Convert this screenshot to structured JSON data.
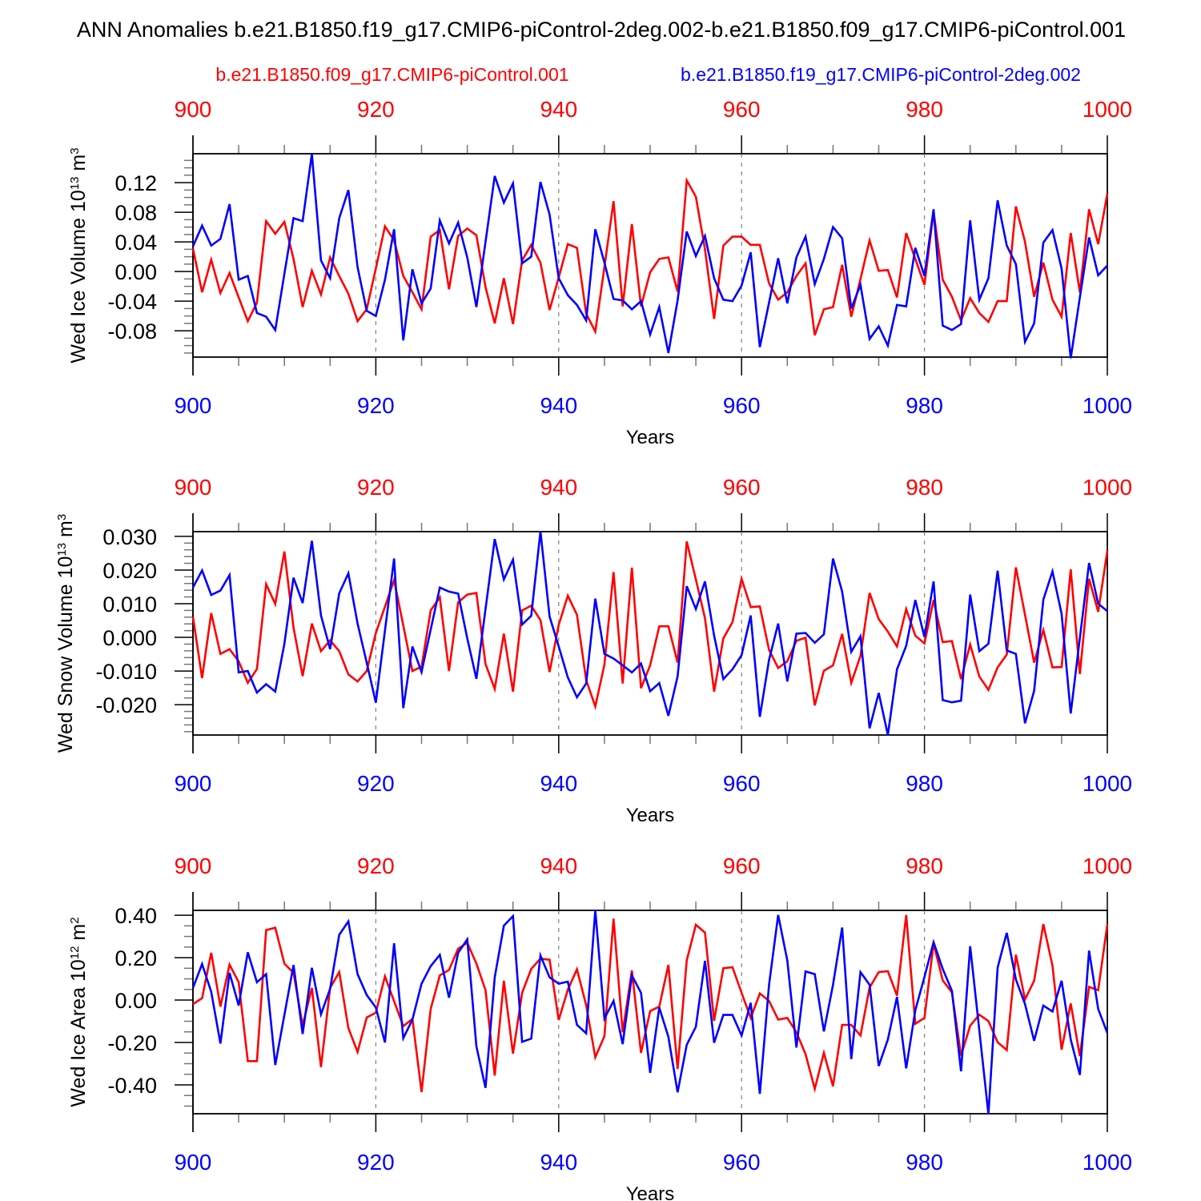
{
  "title": "ANN Anomalies b.e21.B1850.f19_g17.CMIP6-piControl-2deg.002-b.e21.B1850.f09_g17.CMIP6-piControl.001",
  "legend": {
    "red_label": "b.e21.B1850.f09_g17.CMIP6-piControl.001",
    "blue_label": "b.e21.B1850.f19_g17.CMIP6-piControl-2deg.002"
  },
  "colors": {
    "red": "#ff0000",
    "blue": "#0000ff",
    "grid": "#808080"
  },
  "chart_data": [
    {
      "type": "line",
      "ylabel": {
        "base": "Wed Ice Volume 10",
        "exp": "13",
        "unit": " m",
        "unit_exp": "3"
      },
      "xlabel": "Years",
      "x_start": 900,
      "x_end": 1000,
      "xticks": [
        "900",
        "920",
        "940",
        "960",
        "980",
        "1000"
      ],
      "xtick_values": [
        900,
        920,
        940,
        960,
        980,
        1000
      ],
      "ylim": [
        -0.1155,
        0.159
      ],
      "yticks": [
        "0.12",
        "0.08",
        "0.04",
        "0.00",
        "-0.04",
        "-0.08"
      ],
      "ytick_values": [
        0.12,
        0.08,
        0.04,
        0.0,
        -0.04,
        -0.08
      ],
      "yminor_step": 0.01,
      "grid": "dashed vertical at 920, 940, 960, 980",
      "series": [
        {
          "name": "b.e21.B1850.f09_g17.CMIP6-piControl.001",
          "color": "red",
          "values": [
            0.031,
            -0.028,
            0.016,
            -0.029,
            -0.002,
            -0.035,
            -0.067,
            -0.042,
            0.068,
            0.051,
            0.067,
            0.017,
            -0.048,
            0.001,
            -0.031,
            0.019,
            -0.006,
            -0.03,
            -0.067,
            -0.051,
            0.004,
            0.061,
            0.042,
            -0.006,
            -0.028,
            -0.051,
            0.047,
            0.056,
            -0.024,
            0.048,
            0.058,
            0.049,
            -0.021,
            -0.07,
            -0.009,
            -0.071,
            0.015,
            0.036,
            0.012,
            -0.052,
            -0.008,
            0.037,
            0.032,
            -0.057,
            -0.081,
            0.006,
            0.095,
            -0.047,
            0.064,
            -0.047,
            -0.001,
            0.017,
            0.019,
            -0.027,
            0.123,
            0.101,
            0.03,
            -0.064,
            0.035,
            0.047,
            0.047,
            0.036,
            0.036,
            -0.016,
            -0.038,
            -0.028,
            -0.006,
            0.011,
            -0.086,
            -0.051,
            -0.048,
            0.009,
            -0.061,
            -0.01,
            0.042,
            0.001,
            0.002,
            -0.035,
            0.052,
            0.017,
            -0.018,
            0.081,
            -0.011,
            -0.034,
            -0.066,
            -0.036,
            -0.056,
            -0.068,
            -0.04,
            -0.04,
            0.088,
            0.04,
            -0.034,
            0.012,
            -0.038,
            -0.061,
            0.052,
            -0.028,
            0.084,
            0.037,
            0.105
          ]
        },
        {
          "name": "b.e21.B1850.f19_g17.CMIP6-piControl-2deg.002",
          "color": "blue",
          "values": [
            0.034,
            0.062,
            0.035,
            0.044,
            0.091,
            -0.011,
            -0.006,
            -0.056,
            -0.061,
            -0.079,
            -0.003,
            0.072,
            0.068,
            0.159,
            0.015,
            -0.009,
            0.072,
            0.11,
            0.006,
            -0.053,
            -0.06,
            -0.011,
            0.057,
            -0.093,
            0.003,
            -0.043,
            -0.023,
            0.069,
            0.038,
            0.066,
            0.019,
            -0.048,
            0.04,
            0.129,
            0.093,
            0.119,
            0.011,
            0.02,
            0.121,
            0.077,
            -0.009,
            -0.032,
            -0.045,
            -0.066,
            0.057,
            0.012,
            -0.037,
            -0.039,
            -0.051,
            -0.04,
            -0.085,
            -0.048,
            -0.11,
            -0.039,
            0.054,
            0.021,
            0.048,
            -0.009,
            -0.038,
            -0.04,
            -0.019,
            0.026,
            -0.102,
            -0.042,
            0.018,
            -0.043,
            0.019,
            0.047,
            -0.017,
            0.017,
            0.06,
            0.045,
            -0.05,
            -0.018,
            -0.091,
            -0.074,
            -0.1,
            -0.045,
            -0.047,
            0.032,
            -0.006,
            0.084,
            -0.073,
            -0.079,
            -0.071,
            0.069,
            -0.038,
            -0.009,
            0.096,
            0.035,
            0.01,
            -0.095,
            -0.07,
            0.039,
            0.056,
            0.004,
            -0.117,
            -0.035,
            0.046,
            -0.005,
            0.008
          ]
        }
      ]
    },
    {
      "type": "line",
      "ylabel": {
        "base": "Wed Snow Volume 10",
        "exp": "13",
        "unit": " m",
        "unit_exp": "3"
      },
      "xlabel": "Years",
      "x_start": 900,
      "x_end": 1000,
      "xticks": [
        "900",
        "920",
        "940",
        "960",
        "980",
        "1000"
      ],
      "xtick_values": [
        900,
        920,
        940,
        960,
        980,
        1000
      ],
      "ylim": [
        -0.029,
        0.0314
      ],
      "yticks": [
        "0.030",
        "0.020",
        "0.010",
        "0.000",
        "-0.010",
        "-0.020"
      ],
      "ytick_values": [
        0.03,
        0.02,
        0.01,
        0.0,
        -0.01,
        -0.02
      ],
      "yminor_step": 0.002,
      "grid": "dashed vertical at 920, 940, 960, 980",
      "series": [
        {
          "name": "b.e21.B1850.f09_g17.CMIP6-piControl.001",
          "color": "red",
          "values": [
            0.0061,
            -0.0121,
            0.0072,
            -0.0049,
            -0.0035,
            -0.0071,
            -0.0135,
            -0.0094,
            0.0158,
            0.0099,
            0.0255,
            0.0029,
            -0.0115,
            0.0041,
            -0.0041,
            -0.0009,
            -0.0041,
            -0.011,
            -0.0131,
            -0.01,
            0.0013,
            0.0091,
            0.017,
            0.0035,
            -0.01,
            -0.0087,
            0.008,
            0.0119,
            -0.01,
            0.0104,
            0.0127,
            0.0132,
            -0.0079,
            -0.0153,
            0.0011,
            -0.0161,
            0.008,
            0.0094,
            0.0051,
            -0.0103,
            0.0037,
            0.0124,
            0.0067,
            -0.0127,
            -0.0205,
            -0.0081,
            0.0194,
            -0.0137,
            0.0207,
            -0.0151,
            -0.0083,
            0.0033,
            0.0033,
            -0.0075,
            0.0285,
            0.0172,
            0.0057,
            -0.0161,
            -0.0003,
            0.0045,
            0.0174,
            0.009,
            0.0092,
            -0.0037,
            -0.0091,
            -0.0071,
            -0.001,
            -0.0001,
            -0.0202,
            -0.0099,
            -0.0083,
            0.001,
            -0.0135,
            -0.0055,
            0.0132,
            0.0054,
            0.0017,
            -0.0027,
            0.0084,
            0.0005,
            -0.0018,
            0.0111,
            -0.0014,
            -0.0011,
            -0.0124,
            -0.0021,
            -0.0116,
            -0.0156,
            -0.0089,
            -0.0051,
            0.0208,
            0.0067,
            -0.0075,
            0.0022,
            -0.0089,
            -0.0088,
            0.0202,
            -0.0109,
            0.0174,
            0.0076,
            0.0257
          ]
        },
        {
          "name": "b.e21.B1850.f19_g17.CMIP6-piControl-2deg.002",
          "color": "blue",
          "values": [
            0.0148,
            0.0199,
            0.0126,
            0.0139,
            0.0185,
            -0.0104,
            -0.01,
            -0.0164,
            -0.0139,
            -0.0161,
            -0.0019,
            0.0177,
            0.0102,
            0.0287,
            0.0065,
            -0.0035,
            0.0131,
            0.019,
            0.0041,
            -0.0075,
            -0.0194,
            0.002,
            0.0234,
            -0.021,
            -0.0027,
            -0.0103,
            0.0023,
            0.0148,
            0.0136,
            0.013,
            -0.0003,
            -0.0123,
            0.0084,
            0.0292,
            0.0172,
            0.0231,
            0.0038,
            0.0064,
            0.0315,
            0.0062,
            -0.0027,
            -0.0119,
            -0.0178,
            -0.0137,
            0.0115,
            -0.0049,
            -0.0063,
            -0.0083,
            -0.0104,
            -0.0078,
            -0.016,
            -0.0136,
            -0.0233,
            -0.0116,
            0.0152,
            0.0084,
            0.0166,
            0.0005,
            -0.0124,
            -0.0095,
            -0.0053,
            0.0065,
            -0.0236,
            -0.0067,
            0.0041,
            -0.0131,
            0.0011,
            0.0013,
            -0.0016,
            0.0009,
            0.0234,
            0.0136,
            -0.0043,
            0.0003,
            -0.027,
            -0.0165,
            -0.029,
            -0.0095,
            -0.0025,
            0.0111,
            0.0001,
            0.0166,
            -0.0186,
            -0.0193,
            -0.0188,
            0.0127,
            -0.0041,
            -0.0019,
            0.0198,
            -0.0039,
            -0.0049,
            -0.0255,
            -0.0159,
            0.0112,
            0.0196,
            0.007,
            -0.0226,
            -0.0002,
            0.0221,
            0.01,
            0.0078
          ]
        }
      ]
    },
    {
      "type": "line",
      "ylabel": {
        "base": "Wed Ice Area 10",
        "exp": "12",
        "unit": " m",
        "unit_exp": "2"
      },
      "xlabel": "Years",
      "x_start": 900,
      "x_end": 1000,
      "xticks": [
        "900",
        "920",
        "940",
        "960",
        "980",
        "1000"
      ],
      "xtick_values": [
        900,
        920,
        940,
        960,
        980,
        1000
      ],
      "ylim": [
        -0.536,
        0.423
      ],
      "yticks": [
        "0.40",
        "0.20",
        "0.00",
        "-0.20",
        "-0.40"
      ],
      "ytick_values": [
        0.4,
        0.2,
        0.0,
        -0.2,
        -0.4
      ],
      "yminor_step": 0.05,
      "grid": "dashed vertical at 920, 940, 960, 980",
      "series": [
        {
          "name": "b.e21.B1850.f09_g17.CMIP6-piControl.001",
          "color": "red",
          "values": [
            -0.019,
            0.009,
            0.223,
            -0.031,
            0.167,
            0.084,
            -0.288,
            -0.288,
            0.33,
            0.341,
            0.172,
            0.128,
            -0.119,
            0.057,
            -0.316,
            0.057,
            0.132,
            -0.132,
            -0.245,
            -0.082,
            -0.06,
            0.112,
            -0.005,
            -0.123,
            -0.089,
            -0.434,
            -0.042,
            0.116,
            0.142,
            0.242,
            0.27,
            0.172,
            0.047,
            -0.356,
            0.091,
            -0.253,
            0.034,
            0.147,
            0.195,
            0.19,
            -0.094,
            0.049,
            0.145,
            -0.024,
            -0.27,
            -0.17,
            0.384,
            -0.152,
            0.14,
            -0.249,
            -0.052,
            -0.031,
            0.166,
            -0.325,
            0.187,
            0.355,
            0.318,
            -0.098,
            0.15,
            0.155,
            0.034,
            -0.084,
            0.031,
            -0.004,
            -0.092,
            -0.084,
            -0.152,
            -0.255,
            -0.419,
            -0.249,
            -0.406,
            -0.117,
            -0.117,
            -0.167,
            0.059,
            0.132,
            0.136,
            0.021,
            0.401,
            -0.112,
            -0.084,
            0.267,
            0.093,
            0.036,
            -0.262,
            -0.121,
            -0.069,
            -0.099,
            -0.199,
            -0.236,
            0.214,
            0.003,
            0.091,
            0.358,
            0.162,
            -0.234,
            -0.016,
            -0.264,
            0.062,
            0.047,
            0.357
          ]
        },
        {
          "name": "b.e21.B1850.f19_g17.CMIP6-piControl-2deg.002",
          "color": "blue",
          "values": [
            0.057,
            0.17,
            0.039,
            -0.205,
            0.128,
            -0.026,
            0.225,
            0.084,
            0.122,
            -0.306,
            -0.07,
            0.165,
            -0.16,
            0.152,
            -0.067,
            0.053,
            0.308,
            0.371,
            0.122,
            0.024,
            -0.035,
            -0.2,
            0.268,
            -0.18,
            -0.092,
            0.077,
            0.16,
            0.213,
            0.011,
            0.223,
            0.286,
            -0.218,
            -0.414,
            0.107,
            0.351,
            0.396,
            -0.197,
            -0.182,
            0.21,
            0.107,
            0.077,
            0.087,
            -0.117,
            -0.157,
            0.424,
            -0.087,
            -0.004,
            -0.208,
            0.116,
            0.034,
            -0.343,
            -0.035,
            -0.174,
            -0.435,
            -0.211,
            -0.126,
            0.185,
            -0.201,
            -0.07,
            -0.07,
            -0.167,
            -0.013,
            -0.442,
            0.072,
            0.401,
            0.187,
            -0.224,
            0.135,
            0.122,
            -0.148,
            0.072,
            0.342,
            -0.278,
            0.132,
            0.072,
            -0.311,
            -0.186,
            0.015,
            -0.322,
            -0.048,
            0.109,
            0.273,
            0.147,
            0.044,
            -0.336,
            0.254,
            -0.142,
            -0.538,
            0.153,
            0.317,
            0.097,
            -0.019,
            -0.192,
            -0.026,
            -0.054,
            0.091,
            -0.186,
            -0.353,
            0.233,
            -0.042,
            -0.155
          ]
        }
      ]
    }
  ]
}
